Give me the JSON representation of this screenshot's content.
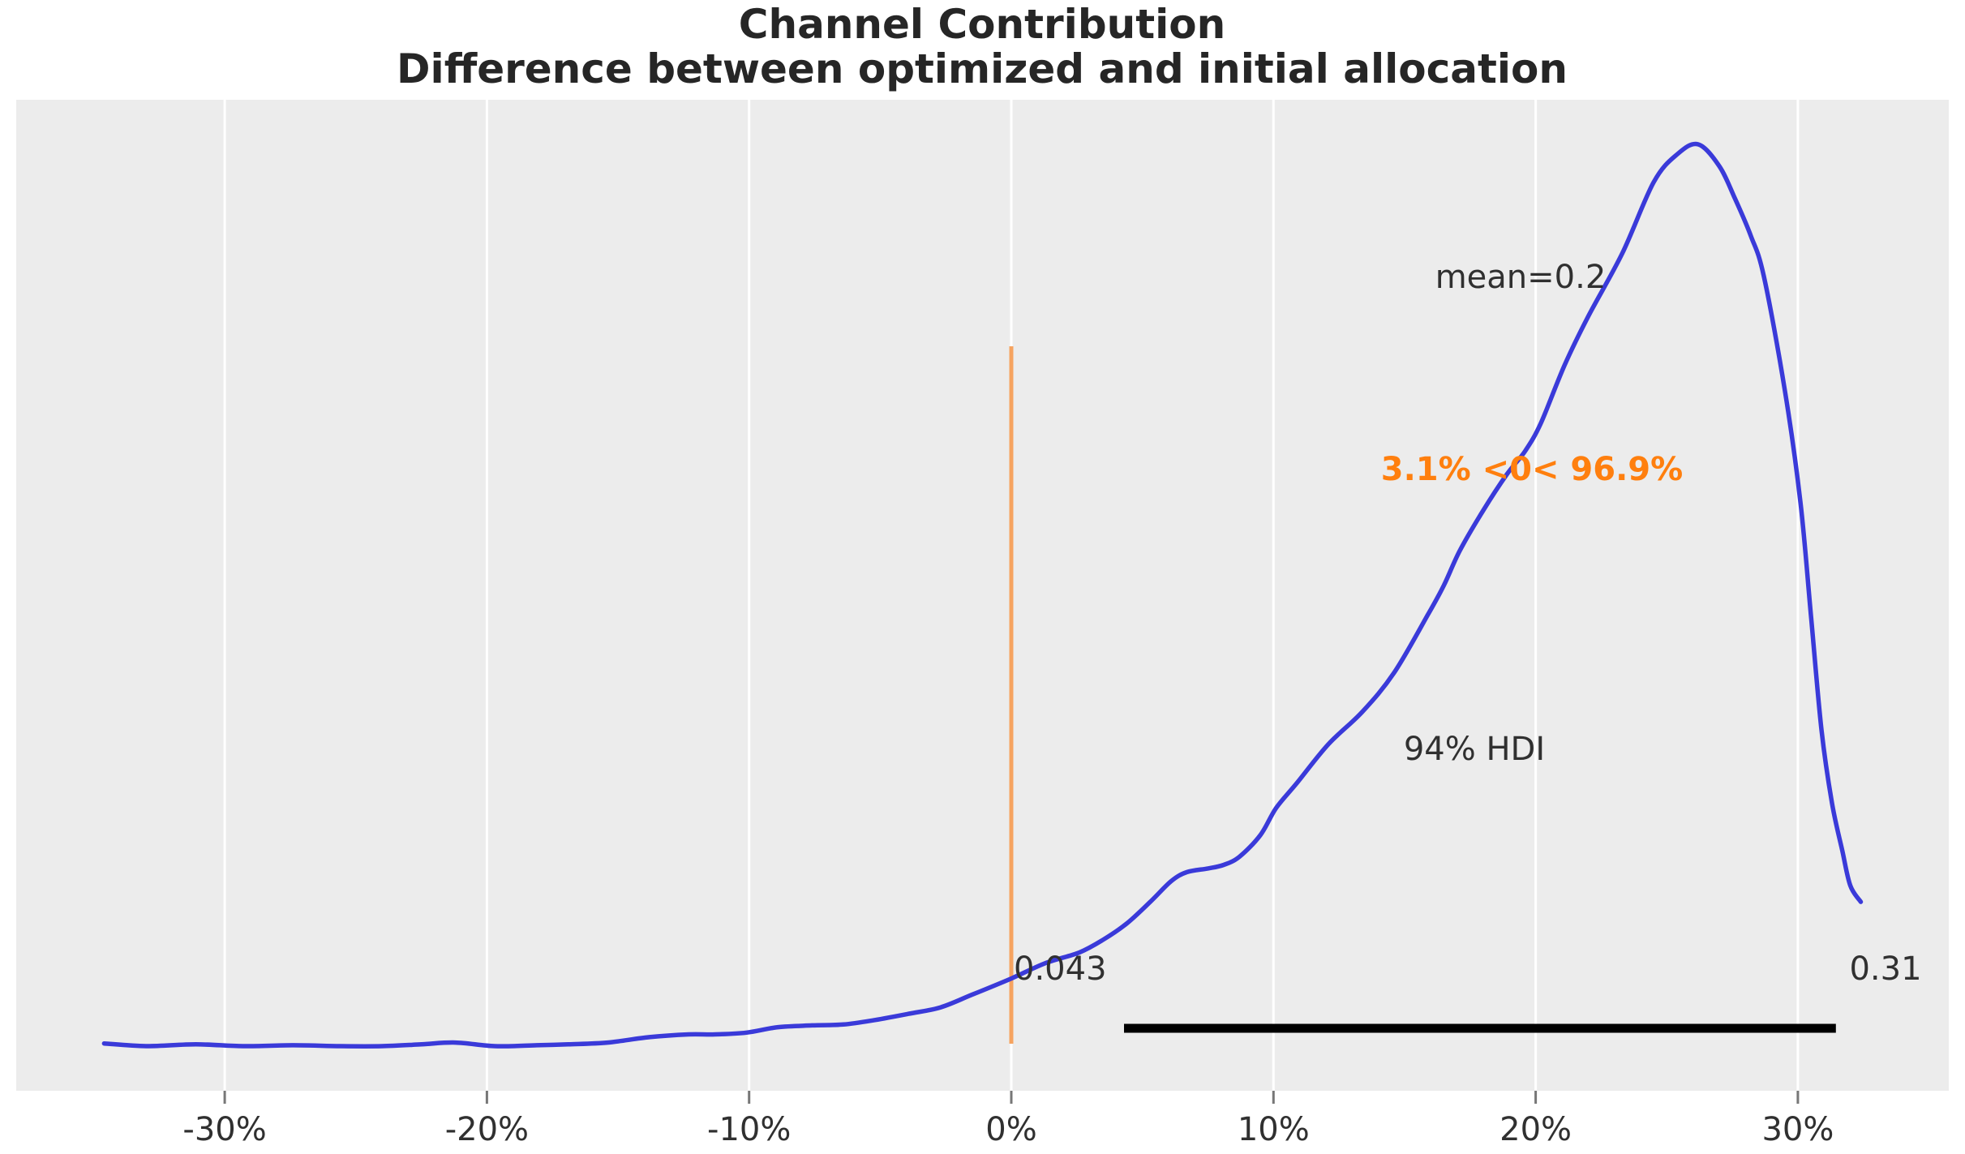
{
  "title": {
    "line1": "Channel Contribution",
    "line2": "Difference between optimized and initial allocation"
  },
  "annotations": {
    "mean_label": "mean=0.2",
    "rope_label": "3.1% <0< 96.9%",
    "hdi_label": "94% HDI",
    "hdi_lower_label": "0.043",
    "hdi_upper_label": "0.31"
  },
  "colors": {
    "curve": "#3a3ad9",
    "ref_line": "#f6a360",
    "rope_text": "#ff7f0e",
    "hdi_bar": "#000000",
    "plot_bg": "#ececec",
    "gridline": "#ffffff",
    "tick_mark": "#777777",
    "text": "#303030"
  },
  "x_axis": {
    "ticks": [
      {
        "value": -30,
        "label": "-30%"
      },
      {
        "value": -20,
        "label": "-20%"
      },
      {
        "value": -10,
        "label": "-10%"
      },
      {
        "value": 0,
        "label": "0%"
      },
      {
        "value": 10,
        "label": "10%"
      },
      {
        "value": 20,
        "label": "20%"
      },
      {
        "value": 30,
        "label": "30%"
      }
    ]
  },
  "chart_data": {
    "type": "kde",
    "title": "Channel Contribution",
    "subtitle": "Difference between optimized and initial allocation",
    "x_unit": "percent_difference",
    "x_range_pct": [
      -38,
      35.7
    ],
    "ref_line_x_pct": 0,
    "mean": 0.2,
    "hdi": {
      "level": "94%",
      "lower": 0.043,
      "upper": 0.31
    },
    "probability_below_ref": "3.1%",
    "probability_above_ref": "96.9%",
    "curve_points_pct_density": [
      [
        -34.6,
        0.003
      ],
      [
        -33.0,
        0.0
      ],
      [
        -31.1,
        0.002
      ],
      [
        -29.3,
        0.0
      ],
      [
        -27.4,
        0.001
      ],
      [
        -25.6,
        0.0
      ],
      [
        -24.0,
        0.0
      ],
      [
        -22.5,
        0.002
      ],
      [
        -21.2,
        0.004
      ],
      [
        -19.7,
        0.0
      ],
      [
        -18.1,
        0.001
      ],
      [
        -16.9,
        0.002
      ],
      [
        -15.4,
        0.004
      ],
      [
        -13.8,
        0.01
      ],
      [
        -12.3,
        0.013
      ],
      [
        -11.3,
        0.013
      ],
      [
        -10.1,
        0.015
      ],
      [
        -8.9,
        0.021
      ],
      [
        -7.6,
        0.023
      ],
      [
        -6.4,
        0.024
      ],
      [
        -5.2,
        0.029
      ],
      [
        -3.9,
        0.036
      ],
      [
        -2.7,
        0.043
      ],
      [
        -1.5,
        0.057
      ],
      [
        0.0,
        0.075
      ],
      [
        1.3,
        0.092
      ],
      [
        2.6,
        0.104
      ],
      [
        3.5,
        0.118
      ],
      [
        4.4,
        0.136
      ],
      [
        5.3,
        0.16
      ],
      [
        6.1,
        0.183
      ],
      [
        6.7,
        0.193
      ],
      [
        7.5,
        0.197
      ],
      [
        8.1,
        0.201
      ],
      [
        8.7,
        0.21
      ],
      [
        9.5,
        0.234
      ],
      [
        10.1,
        0.264
      ],
      [
        10.9,
        0.292
      ],
      [
        12.1,
        0.335
      ],
      [
        13.4,
        0.371
      ],
      [
        14.6,
        0.414
      ],
      [
        15.9,
        0.479
      ],
      [
        16.5,
        0.511
      ],
      [
        17.1,
        0.549
      ],
      [
        18.0,
        0.594
      ],
      [
        18.9,
        0.634
      ],
      [
        19.6,
        0.66
      ],
      [
        20.2,
        0.691
      ],
      [
        21.1,
        0.755
      ],
      [
        22.0,
        0.809
      ],
      [
        23.3,
        0.879
      ],
      [
        24.5,
        0.958
      ],
      [
        25.4,
        0.989
      ],
      [
        26.2,
        1.0
      ],
      [
        27.0,
        0.976
      ],
      [
        27.6,
        0.94
      ],
      [
        28.2,
        0.899
      ],
      [
        28.7,
        0.854
      ],
      [
        29.5,
        0.728
      ],
      [
        30.1,
        0.603
      ],
      [
        30.5,
        0.477
      ],
      [
        30.9,
        0.351
      ],
      [
        31.3,
        0.27
      ],
      [
        31.7,
        0.216
      ],
      [
        32.0,
        0.178
      ],
      [
        32.4,
        0.16
      ]
    ]
  }
}
